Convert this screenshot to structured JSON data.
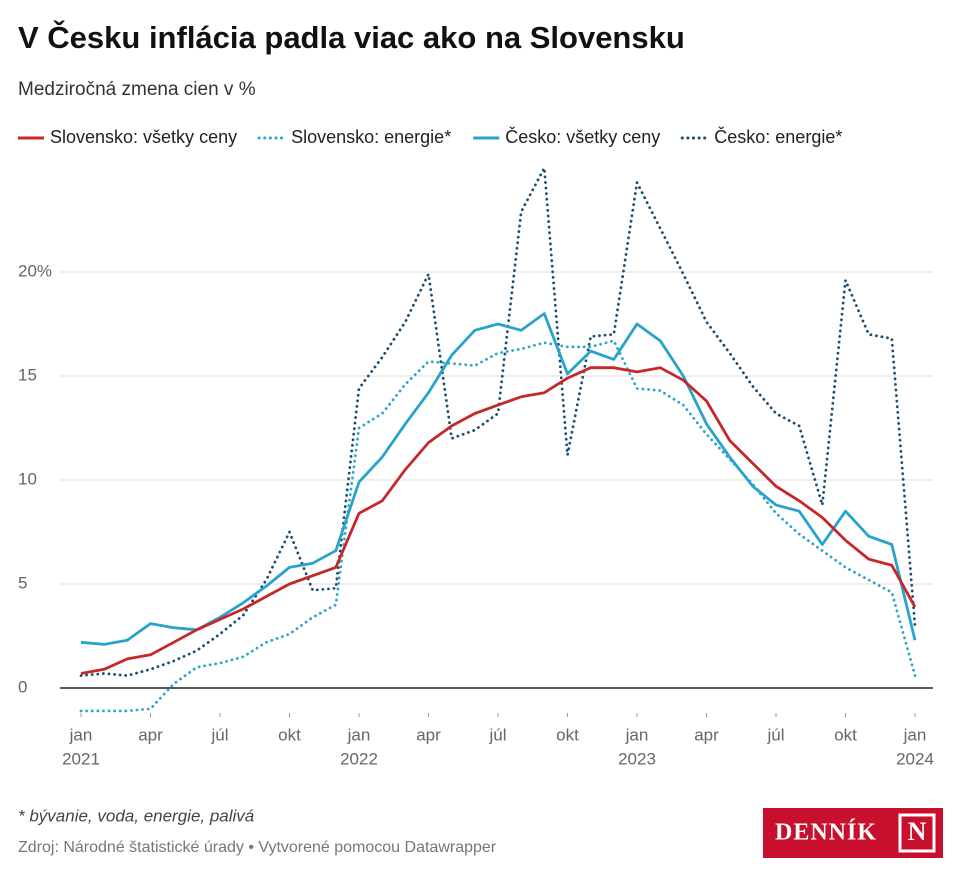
{
  "chart_data": {
    "type": "line",
    "title": "V Česku inflácia padla viac ako na Slovensku",
    "subtitle": "Medziročná zmena cien v %",
    "x": [
      "2021-01",
      "2021-02",
      "2021-03",
      "2021-04",
      "2021-05",
      "2021-06",
      "2021-07",
      "2021-08",
      "2021-09",
      "2021-10",
      "2021-11",
      "2021-12",
      "2022-01",
      "2022-02",
      "2022-03",
      "2022-04",
      "2022-05",
      "2022-06",
      "2022-07",
      "2022-08",
      "2022-09",
      "2022-10",
      "2022-11",
      "2022-12",
      "2023-01",
      "2023-02",
      "2023-03",
      "2023-04",
      "2023-05",
      "2023-06",
      "2023-07",
      "2023-08",
      "2023-09",
      "2023-10",
      "2023-11",
      "2023-12",
      "2024-01"
    ],
    "xticks": [
      {
        "value": "2021-01",
        "label": "jan",
        "year": "2021"
      },
      {
        "value": "2021-04",
        "label": "apr"
      },
      {
        "value": "2021-07",
        "label": "júl"
      },
      {
        "value": "2021-10",
        "label": "okt"
      },
      {
        "value": "2022-01",
        "label": "jan",
        "year": "2022"
      },
      {
        "value": "2022-04",
        "label": "apr"
      },
      {
        "value": "2022-07",
        "label": "júl"
      },
      {
        "value": "2022-10",
        "label": "okt"
      },
      {
        "value": "2023-01",
        "label": "jan",
        "year": "2023"
      },
      {
        "value": "2023-04",
        "label": "apr"
      },
      {
        "value": "2023-07",
        "label": "júl"
      },
      {
        "value": "2023-10",
        "label": "okt"
      },
      {
        "value": "2024-01",
        "label": "jan",
        "year": "2024"
      }
    ],
    "ylim": [
      -1.2,
      25
    ],
    "yticks": [
      0,
      5,
      10,
      15,
      {
        "value": 20,
        "label": "20%"
      }
    ],
    "grid": true,
    "series": [
      {
        "name": "Slovensko: všetky ceny",
        "color": "#c62828",
        "style": "solid",
        "values": [
          0.7,
          0.9,
          1.4,
          1.6,
          2.2,
          2.8,
          3.3,
          3.8,
          4.4,
          5.0,
          5.4,
          5.8,
          8.4,
          9.0,
          10.5,
          11.8,
          12.6,
          13.2,
          13.6,
          14.0,
          14.2,
          14.9,
          15.4,
          15.4,
          15.2,
          15.4,
          14.8,
          13.8,
          11.9,
          10.8,
          9.7,
          9.0,
          8.2,
          7.1,
          6.2,
          5.9,
          3.9
        ]
      },
      {
        "name": "Slovensko: energie*",
        "color": "#2aa6c9",
        "style": "dotted",
        "values": [
          -1.1,
          -1.1,
          -1.1,
          -1.0,
          0.2,
          1.0,
          1.2,
          1.5,
          2.2,
          2.6,
          3.4,
          4.0,
          12.5,
          13.2,
          14.6,
          15.7,
          15.6,
          15.5,
          16.1,
          16.3,
          16.6,
          16.4,
          16.4,
          16.7,
          14.4,
          14.3,
          13.6,
          12.2,
          11.0,
          9.8,
          8.4,
          7.4,
          6.6,
          5.8,
          5.2,
          4.6,
          0.6
        ]
      },
      {
        "name": "Česko: všetky ceny",
        "color": "#27a3cc",
        "style": "solid",
        "values": [
          2.2,
          2.1,
          2.3,
          3.1,
          2.9,
          2.8,
          3.4,
          4.1,
          4.9,
          5.8,
          6.0,
          6.6,
          9.9,
          11.1,
          12.7,
          14.2,
          16.0,
          17.2,
          17.5,
          17.2,
          18.0,
          15.1,
          16.2,
          15.8,
          17.5,
          16.7,
          15.0,
          12.7,
          11.1,
          9.7,
          8.8,
          8.5,
          6.9,
          8.5,
          7.3,
          6.9,
          2.3
        ]
      },
      {
        "name": "Česko: energie*",
        "color": "#1a4c6e",
        "style": "dotted",
        "values": [
          0.6,
          0.7,
          0.6,
          0.9,
          1.3,
          1.8,
          2.6,
          3.5,
          5.2,
          7.5,
          4.7,
          4.8,
          14.4,
          15.9,
          17.6,
          19.9,
          12.0,
          12.4,
          13.2,
          22.9,
          25.0,
          11.2,
          16.9,
          17.0,
          24.3,
          22.1,
          19.9,
          17.6,
          16.1,
          14.5,
          13.2,
          12.6,
          8.8,
          19.6,
          17.0,
          16.8,
          3.0
        ]
      }
    ],
    "footnote": "* bývanie, voda, energie, palivá",
    "source": "Zdroj: Národné štatistické úrady • Vytvorené pomocou Datawrapper",
    "logo": {
      "text": "DENNÍK",
      "mark": "N"
    }
  }
}
